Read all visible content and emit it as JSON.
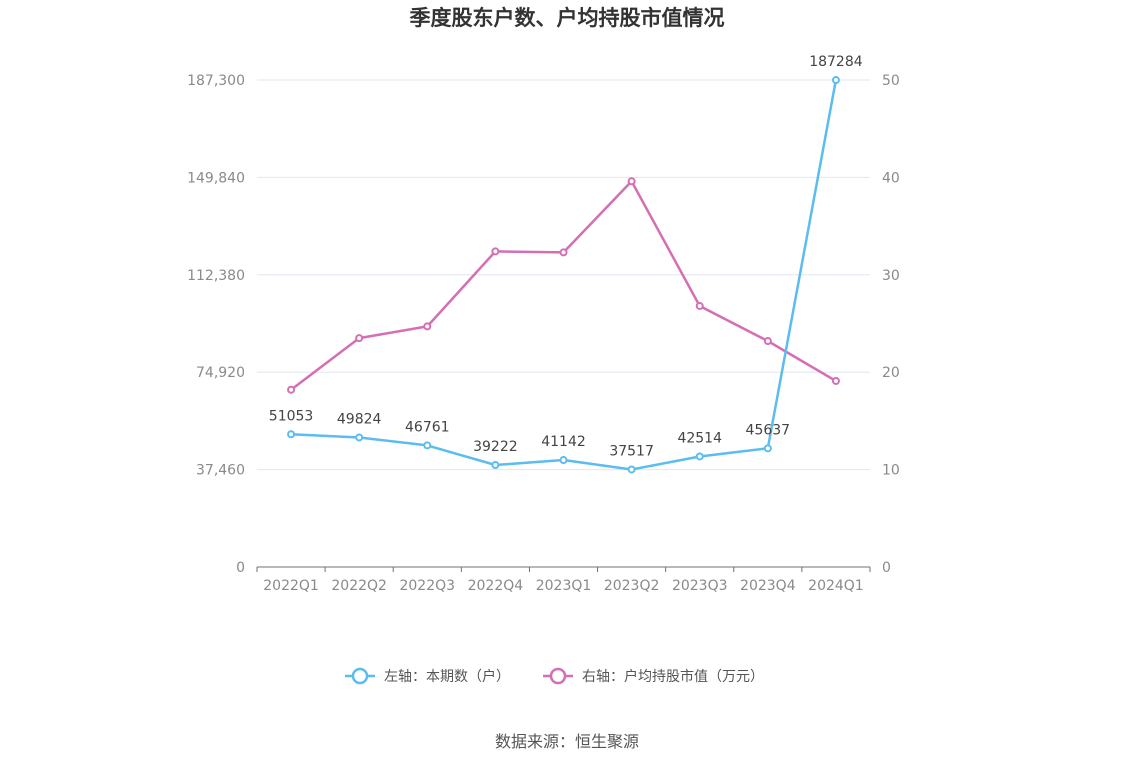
{
  "chart_data": {
    "type": "line",
    "title": "季度股东户数、户均持股市值情况",
    "categories": [
      "2022Q1",
      "2022Q2",
      "2022Q3",
      "2022Q4",
      "2023Q1",
      "2023Q2",
      "2023Q3",
      "2023Q4",
      "2024Q1"
    ],
    "left_axis": {
      "ticks": [
        "0",
        "37,460",
        "74,920",
        "112,380",
        "149,840",
        "187,300"
      ],
      "ylim": [
        0,
        187300
      ]
    },
    "right_axis": {
      "ticks": [
        "0",
        "10",
        "20",
        "30",
        "40",
        "50"
      ],
      "ylim": [
        0,
        50
      ]
    },
    "series": [
      {
        "name": "左轴：本期数（户）",
        "axis": "left",
        "color": "#5bbcf0",
        "values": [
          51053,
          49824,
          46761,
          39222,
          41142,
          37517,
          42514,
          45637,
          187284
        ],
        "labels": [
          "51053",
          "49824",
          "46761",
          "39222",
          "41142",
          "37517",
          "42514",
          "45637",
          "187284"
        ]
      },
      {
        "name": "右轴：户均持股市值（万元）",
        "axis": "right",
        "color": "#d46fb4",
        "values": [
          18.2,
          23.5,
          24.7,
          32.4,
          32.3,
          39.6,
          26.8,
          23.2,
          19.1
        ]
      }
    ],
    "grid": true,
    "legend_position": "bottom"
  },
  "source": "数据来源：恒生聚源"
}
